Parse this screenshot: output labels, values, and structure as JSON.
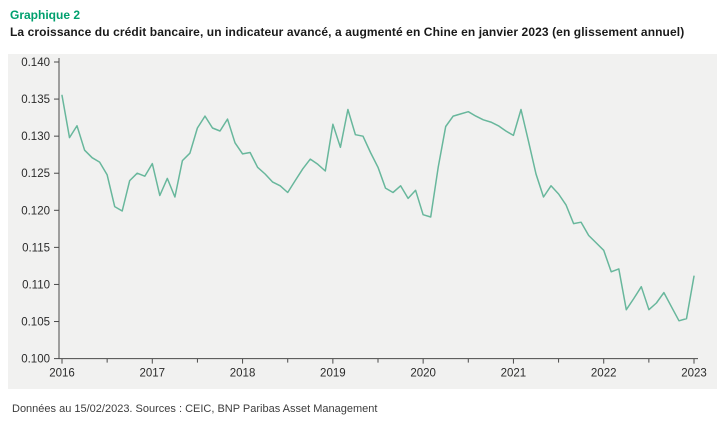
{
  "header": {
    "kicker": "Graphique 2",
    "title": "La croissance du crédit bancaire, un indicateur avancé, a augmenté en Chine en janvier 2023 (en glissement annuel)"
  },
  "footer": {
    "note": "Données au 15/02/2023. Sources : CEIC, BNP Paribas Asset Management"
  },
  "colors": {
    "accent_green": "#00a06e",
    "line": "#68b79c",
    "plot_bg": "#f1f1f0",
    "axis": "#4a4a4a",
    "tick_text": "#2b2b2b"
  },
  "chart_data": {
    "type": "line",
    "title": "Croissance du crédit bancaire en Chine (glissement annuel)",
    "x_start": "2016-01",
    "x_end": "2023-01",
    "frequency": "monthly",
    "x_tick_labels": [
      "2016",
      "2017",
      "2018",
      "2019",
      "2020",
      "2021",
      "2022",
      "2023"
    ],
    "y_tick_labels": [
      "0.100",
      "0.105",
      "0.110",
      "0.115",
      "0.120",
      "0.125",
      "0.130",
      "0.135",
      "0.140"
    ],
    "ylim": [
      0.1,
      0.14
    ],
    "grid": false,
    "legend": "none",
    "values": [
      0.1355,
      0.1298,
      0.1314,
      0.1281,
      0.1271,
      0.1265,
      0.1248,
      0.1205,
      0.1199,
      0.124,
      0.125,
      0.1246,
      0.1263,
      0.122,
      0.1243,
      0.1218,
      0.1267,
      0.1277,
      0.1311,
      0.1327,
      0.1311,
      0.1307,
      0.1323,
      0.1291,
      0.1276,
      0.1278,
      0.1258,
      0.1249,
      0.1238,
      0.1233,
      0.1224,
      0.124,
      0.1256,
      0.1269,
      0.1262,
      0.1253,
      0.1316,
      0.1285,
      0.1336,
      0.1302,
      0.13,
      0.1278,
      0.1258,
      0.123,
      0.1224,
      0.1233,
      0.1216,
      0.1227,
      0.1194,
      0.1191,
      0.1258,
      0.1313,
      0.1327,
      0.133,
      0.1333,
      0.1327,
      0.1322,
      0.1319,
      0.1314,
      0.1307,
      0.1301,
      0.1336,
      0.1293,
      0.1249,
      0.1218,
      0.1233,
      0.1222,
      0.1207,
      0.1182,
      0.1184,
      0.1166,
      0.1156,
      0.1146,
      0.1117,
      0.1121,
      0.1066,
      0.1081,
      0.1097,
      0.1066,
      0.1075,
      0.1089,
      0.107,
      0.1051,
      0.1054,
      0.1111
    ]
  }
}
